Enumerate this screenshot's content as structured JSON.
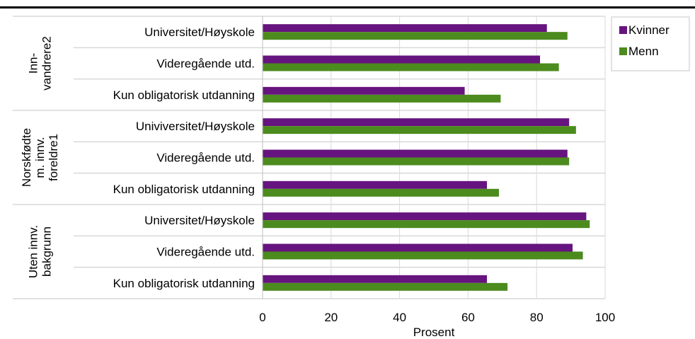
{
  "chart_data": {
    "type": "bar",
    "orientation": "horizontal",
    "title": "",
    "xlabel": "Prosent",
    "ylabel": "",
    "xlim": [
      0,
      100
    ],
    "xticks": [
      0,
      20,
      40,
      60,
      80,
      100
    ],
    "grid": true,
    "legend_position": "top-right",
    "groups": [
      {
        "label": "Inn-\nvandrere2",
        "categories": [
          "Universitet/Høyskole",
          "Videregående utd.",
          "Kun obligatorisk utdanning"
        ]
      },
      {
        "label": "Norskfødte\nm. innv.\nforeldre1",
        "categories": [
          "Univiversitet/Høyskole",
          "Videregående utd.",
          "Kun obligatorisk utdanning"
        ]
      },
      {
        "label": "Uten innv.\nbakgrunn",
        "categories": [
          "Universitet/Høyskole",
          "Videregående utd.",
          "Kun obligatorisk utdanning"
        ]
      }
    ],
    "series": [
      {
        "name": "Kvinner",
        "color": "#66147f",
        "values": [
          83,
          81,
          59,
          89.5,
          89,
          65.5,
          94.5,
          90.5,
          65.5
        ]
      },
      {
        "name": "Menn",
        "color": "#4c8b1e",
        "values": [
          89,
          86.5,
          69.5,
          91.5,
          89.5,
          69,
          95.5,
          93.5,
          71.5
        ]
      }
    ]
  }
}
